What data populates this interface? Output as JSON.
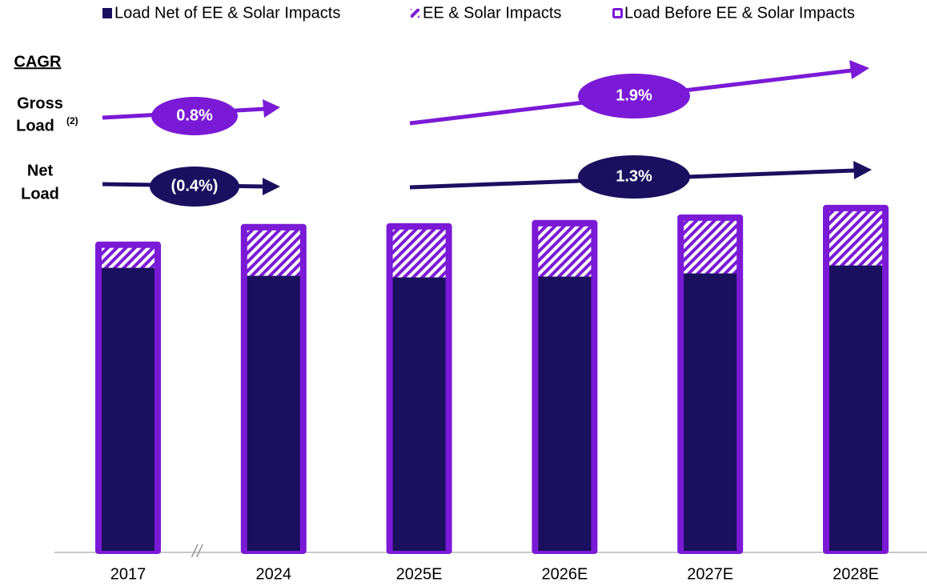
{
  "chart_data": {
    "type": "stacked_bar",
    "categories": [
      "2017",
      "2024",
      "2025E",
      "2026E",
      "2027E",
      "2028E"
    ],
    "series": [
      {
        "name": "Load Net of EE & Solar Impacts",
        "color": "#1b0f5f",
        "values": [
          355,
          345,
          343,
          344,
          348,
          358
        ]
      },
      {
        "name": "EE & Solar Impacts",
        "color": "#7a1ad6",
        "values": [
          25,
          57,
          60,
          63,
          66,
          68
        ]
      },
      {
        "name": "Load Before EE & Solar Impacts",
        "color": "#7a1ad6"
      }
    ],
    "ylim": [
      0,
      450
    ],
    "annotations": {
      "cagr": "CAGR",
      "gross_1": "Gross",
      "gross_2": "Load",
      "gross_note": "(2)",
      "net_1": "Net",
      "net_2": "Load",
      "gross_left": "0.8%",
      "gross_right": "1.9%",
      "net_left": "(0.4%)",
      "net_right": "1.3%",
      "break": "//"
    }
  }
}
